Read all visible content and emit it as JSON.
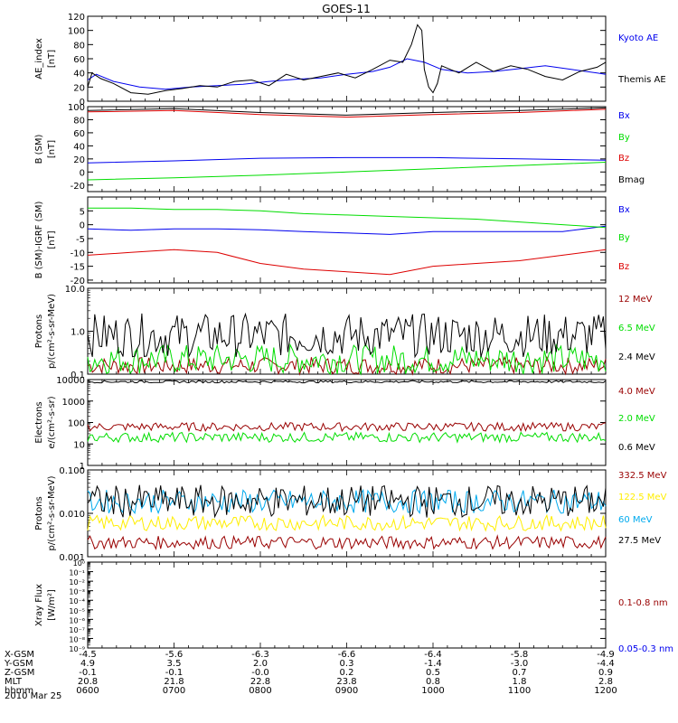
{
  "title": "GOES-11",
  "date": "2010 Mar 25",
  "x_hours": [
    6,
    12
  ],
  "time_ticks": [
    "0600",
    "0700",
    "0800",
    "0900",
    "1000",
    "1100",
    "1200"
  ],
  "colors": {
    "blue": "#0000ee",
    "green": "#00dd00",
    "red": "#dd0000",
    "darkred": "#990000",
    "yellow": "#ffee00",
    "cyan": "#00aaee",
    "black": "#000000"
  },
  "ephemeris": [
    {
      "label": "X-GSM",
      "values": [
        "-4.5",
        "-5.6",
        "-6.3",
        "-6.6",
        "-6.4",
        "-5.8",
        "-4.9"
      ]
    },
    {
      "label": "Y-GSM",
      "values": [
        "4.9",
        "3.5",
        "2.0",
        "0.3",
        "-1.4",
        "-3.0",
        "-4.4"
      ]
    },
    {
      "label": "Z-GSM",
      "values": [
        "-0.1",
        "-0.1",
        "-0.0",
        "0.2",
        "0.5",
        "0.7",
        "0.9"
      ]
    },
    {
      "label": "MLT",
      "values": [
        "20.8",
        "21.8",
        "22.8",
        "23.8",
        "0.8",
        "1.8",
        "2.8"
      ]
    },
    {
      "label": "hhmm",
      "values": [
        "0600",
        "0700",
        "0800",
        "0900",
        "1000",
        "1100",
        "1200"
      ]
    }
  ],
  "chart_data": [
    {
      "type": "line",
      "ylabel": [
        "AE_index",
        "[nT]"
      ],
      "ylim": [
        0,
        120
      ],
      "ticks": [
        0,
        20,
        40,
        60,
        80,
        100,
        120
      ],
      "tick_labels": [
        "0",
        "20",
        "40",
        "60",
        "80",
        "100",
        "120"
      ],
      "series": [
        {
          "name": "Kyoto AE",
          "color": "blue",
          "x": [
            6.0,
            6.1,
            6.3,
            6.6,
            6.9,
            7.2,
            7.5,
            7.8,
            8.1,
            8.4,
            8.7,
            9.0,
            9.3,
            9.5,
            9.7,
            9.9,
            10.1,
            10.4,
            10.7,
            11.0,
            11.3,
            11.6,
            11.9,
            12.0
          ],
          "y": [
            30,
            38,
            28,
            20,
            17,
            20,
            22,
            24,
            28,
            31,
            33,
            38,
            42,
            48,
            60,
            55,
            45,
            40,
            42,
            46,
            50,
            45,
            40,
            38
          ]
        },
        {
          "name": "Themis AE",
          "color": "black",
          "x": [
            6.0,
            6.05,
            6.15,
            6.3,
            6.5,
            6.7,
            6.9,
            7.1,
            7.3,
            7.5,
            7.7,
            7.9,
            8.1,
            8.3,
            8.5,
            8.7,
            8.9,
            9.1,
            9.3,
            9.5,
            9.65,
            9.75,
            9.82,
            9.87,
            9.9,
            9.95,
            10.0,
            10.05,
            10.1,
            10.2,
            10.3,
            10.5,
            10.7,
            10.9,
            11.1,
            11.3,
            11.5,
            11.7,
            11.9,
            12.0
          ],
          "y": [
            20,
            40,
            32,
            25,
            12,
            10,
            15,
            18,
            22,
            20,
            28,
            30,
            22,
            38,
            30,
            35,
            40,
            33,
            45,
            58,
            55,
            80,
            108,
            100,
            45,
            20,
            12,
            25,
            50,
            45,
            40,
            55,
            42,
            50,
            45,
            35,
            30,
            42,
            48,
            55
          ]
        }
      ]
    },
    {
      "type": "line",
      "ylabel": [
        "B (SM)",
        "[nT]"
      ],
      "ylim": [
        -30,
        100
      ],
      "ticks": [
        -20,
        0,
        20,
        40,
        60,
        80,
        100
      ],
      "tick_labels": [
        "-20",
        "0",
        "20",
        "40",
        "60",
        "80",
        "100"
      ],
      "series": [
        {
          "name": "Bx",
          "color": "blue",
          "x": [
            6,
            7,
            8,
            9,
            10,
            11,
            12
          ],
          "y": [
            14,
            17,
            21,
            22,
            22,
            20,
            18
          ]
        },
        {
          "name": "By",
          "color": "green",
          "x": [
            6,
            7,
            8,
            9,
            10,
            11,
            12
          ],
          "y": [
            -12,
            -9,
            -5,
            0,
            5,
            10,
            15
          ]
        },
        {
          "name": "Bz",
          "color": "red",
          "x": [
            6,
            7,
            8,
            9,
            10,
            11,
            12
          ],
          "y": [
            92,
            94,
            88,
            84,
            88,
            91,
            96
          ]
        },
        {
          "name": "Bmag",
          "color": "black",
          "x": [
            6,
            7,
            8,
            9,
            10,
            11,
            12
          ],
          "y": [
            94,
            97,
            91,
            87,
            91,
            94,
            98
          ]
        }
      ]
    },
    {
      "type": "line",
      "ylabel": [
        "B (SM)-IGRF (SM)",
        "[nT]"
      ],
      "ylim": [
        -21,
        10
      ],
      "ticks": [
        -20,
        -15,
        -10,
        -5,
        0,
        5
      ],
      "tick_labels": [
        "-20",
        "-15",
        "-10",
        "-5",
        "0",
        "5"
      ],
      "series": [
        {
          "name": "Bx",
          "color": "blue",
          "x": [
            6,
            6.5,
            7,
            7.5,
            8,
            8.5,
            9,
            9.5,
            10,
            10.5,
            11,
            11.5,
            12
          ],
          "y": [
            -1.5,
            -2,
            -1.5,
            -1.5,
            -1.8,
            -2.5,
            -3,
            -3.5,
            -2.5,
            -2.5,
            -2.5,
            -2.5,
            -0.5
          ]
        },
        {
          "name": "By",
          "color": "green",
          "x": [
            6,
            6.5,
            7,
            7.5,
            8,
            8.5,
            9,
            9.5,
            10,
            10.5,
            11,
            11.5,
            12
          ],
          "y": [
            6,
            6,
            5.5,
            5.5,
            5,
            4,
            3.5,
            3,
            2.5,
            2,
            1,
            0,
            -1
          ]
        },
        {
          "name": "Bz",
          "color": "red",
          "x": [
            6,
            6.5,
            7,
            7.5,
            8,
            8.5,
            9,
            9.5,
            10,
            10.5,
            11,
            11.5,
            12
          ],
          "y": [
            -11,
            -10,
            -9,
            -10,
            -14,
            -16,
            -17,
            -18,
            -15,
            -14,
            -13,
            -11,
            -9
          ]
        }
      ]
    },
    {
      "type": "line",
      "log": true,
      "ylabel": [
        "Protons",
        "p/(cm²-s-sr-MeV)"
      ],
      "ylim": [
        0.1,
        10
      ],
      "ticks": [
        0.1,
        1,
        10
      ],
      "tick_labels": [
        "0.1",
        "1.0",
        "10.0"
      ],
      "series": [
        {
          "name": "12 MeV",
          "color": "darkred",
          "noise": [
            0.1,
            0.25
          ]
        },
        {
          "name": "6.5 MeV",
          "color": "green",
          "noise": [
            0.1,
            0.5
          ]
        },
        {
          "name": "2.4 MeV",
          "color": "black",
          "noise": [
            0.25,
            2.6
          ]
        }
      ]
    },
    {
      "type": "line",
      "log": true,
      "ylabel": [
        "Electrons",
        "e/(cm²-s-sr)"
      ],
      "ylim": [
        1,
        10000
      ],
      "ticks": [
        1,
        10,
        100,
        1000,
        10000
      ],
      "tick_labels": [
        "1",
        "10",
        "100",
        "1000",
        "10000"
      ],
      "series": [
        {
          "name": "4.0 MeV",
          "color": "darkred",
          "noise": [
            40,
            100
          ]
        },
        {
          "name": "2.0 MeV",
          "color": "green",
          "noise": [
            12,
            35
          ]
        },
        {
          "name": "0.6 MeV",
          "color": "black",
          "noise": [
            7000,
            9000
          ]
        }
      ]
    },
    {
      "type": "line",
      "log": true,
      "ylabel": [
        "Protons",
        "p/(cm²-s-sr-MeV)"
      ],
      "ylim": [
        0.001,
        0.1
      ],
      "ticks": [
        0.001,
        0.01,
        0.1
      ],
      "tick_labels": [
        "0.001",
        "0.010",
        "0.100"
      ],
      "series": [
        {
          "name": "332.5 MeV",
          "color": "darkred",
          "noise": [
            0.0015,
            0.003
          ]
        },
        {
          "name": "122.5 MeV",
          "color": "yellow",
          "noise": [
            0.004,
            0.009
          ]
        },
        {
          "name": "60 MeV",
          "color": "cyan",
          "noise": [
            0.01,
            0.035
          ]
        },
        {
          "name": "27.5 MeV",
          "color": "black",
          "noise": [
            0.008,
            0.045
          ]
        }
      ]
    },
    {
      "type": "line",
      "log": true,
      "ylabel": [
        "Xray Flux",
        "[W/m²]"
      ],
      "ylim": [
        1e-09,
        1
      ],
      "ticks": [
        1e-09,
        1e-08,
        1e-07,
        1e-06,
        1e-05,
        0.0001,
        0.001,
        0.01,
        0.1,
        1
      ],
      "tick_labels": [
        "10⁻⁹",
        "10⁻⁸",
        "10⁻⁷",
        "10⁻⁶",
        "10⁻⁵",
        "10⁻⁴",
        "10⁻³",
        "10⁻²",
        "10⁻¹",
        "10⁰"
      ],
      "series": [
        {
          "name": "0.1-0.8 nm",
          "color": "darkred"
        },
        {
          "name": "0.05-0.3 nm",
          "color": "blue"
        }
      ]
    }
  ]
}
